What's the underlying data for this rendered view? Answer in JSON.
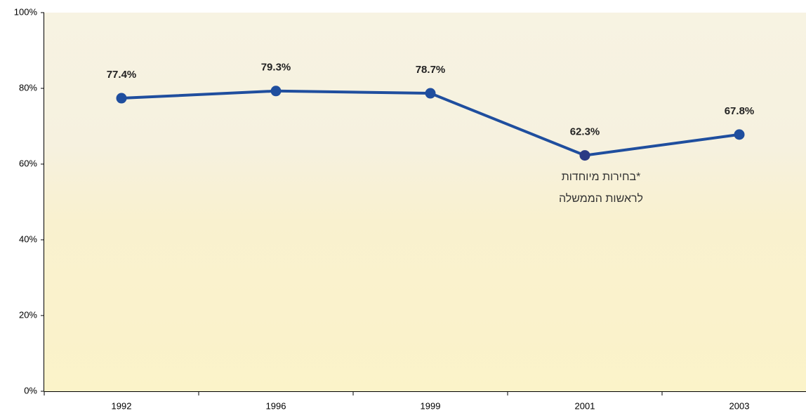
{
  "chart_data": {
    "type": "line",
    "categories": [
      "1992",
      "1996",
      "1999",
      "2001",
      "2003"
    ],
    "series": [
      {
        "name": null,
        "color": "#1f4e9e",
        "values": [
          77.4,
          79.3,
          78.7,
          62.3,
          67.8
        ],
        "value_labels": [
          "77.4%",
          "79.3%",
          "78.7%",
          "62.3%",
          "67.8%"
        ],
        "marker_colors": [
          "#1f4e9e",
          "#1f4e9e",
          "#1f4e9e",
          "#2b3a84",
          "#1f4e9e"
        ]
      }
    ],
    "ylim": [
      0,
      100
    ],
    "yticks": [
      {
        "value": 0,
        "label": "0%"
      },
      {
        "value": 20,
        "label": "20%"
      },
      {
        "value": 40,
        "label": "40%"
      },
      {
        "value": 60,
        "label": "60%"
      },
      {
        "value": 80,
        "label": "80%"
      },
      {
        "value": 100,
        "label": "100%"
      }
    ],
    "annotations": [
      {
        "lines": [
          "*בחירות מיוחדות",
          "לראשות הממשלה"
        ],
        "category": 3
      }
    ]
  }
}
